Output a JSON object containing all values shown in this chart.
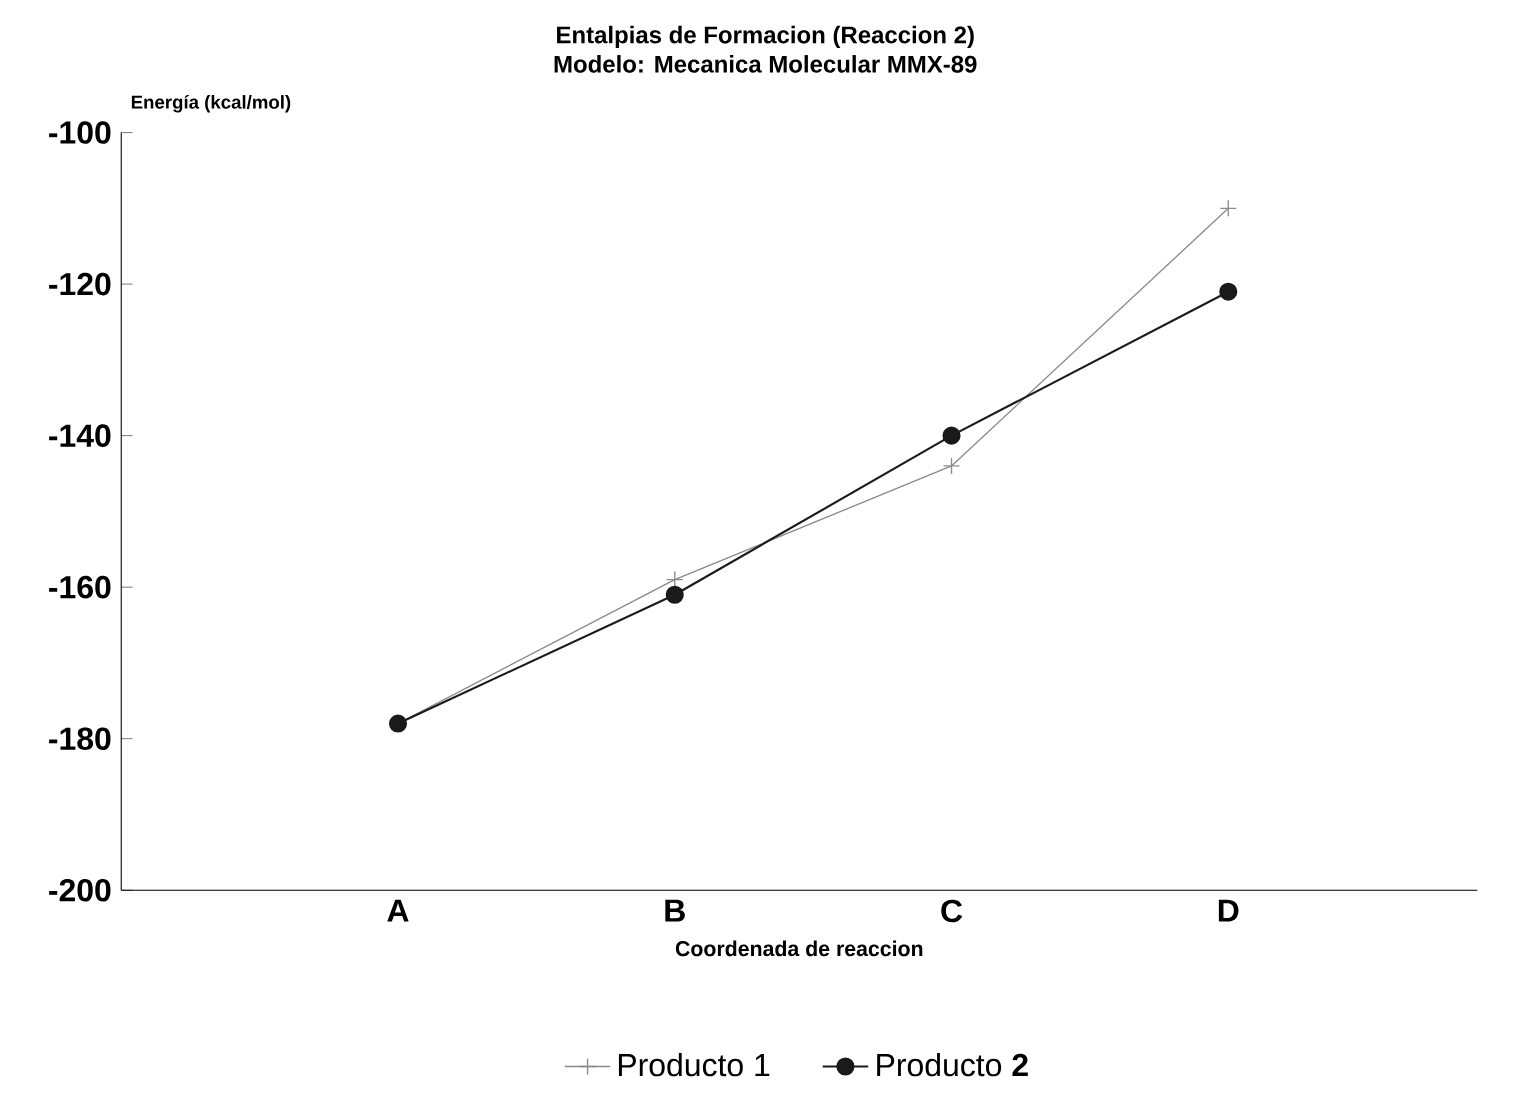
{
  "chart_data": {
    "type": "line",
    "title": "Entalpias de Formacion (Reaccion 2)",
    "subtitle": "Modelo: Mecanica Molecular MMX-89",
    "xlabel": "Coordenada de reaccion",
    "ylabel": "Energía (kcal/mol)",
    "categories": [
      "A",
      "B",
      "C",
      "D"
    ],
    "series": [
      {
        "name": "Producto 1",
        "color": "#8a8a8a",
        "marker": "cross",
        "values": [
          -178,
          -159,
          -144,
          -110
        ]
      },
      {
        "name": "Producto **2**",
        "color": "#1a1a1a",
        "marker": "circle",
        "values": [
          -178,
          -161,
          -140,
          -121
        ]
      }
    ],
    "ylim": [
      -200,
      -100
    ],
    "yticks": [
      -200,
      -180,
      -160,
      -140,
      -120,
      -100
    ],
    "grid": false,
    "legend": "bottom",
    "line_style": "solid"
  }
}
